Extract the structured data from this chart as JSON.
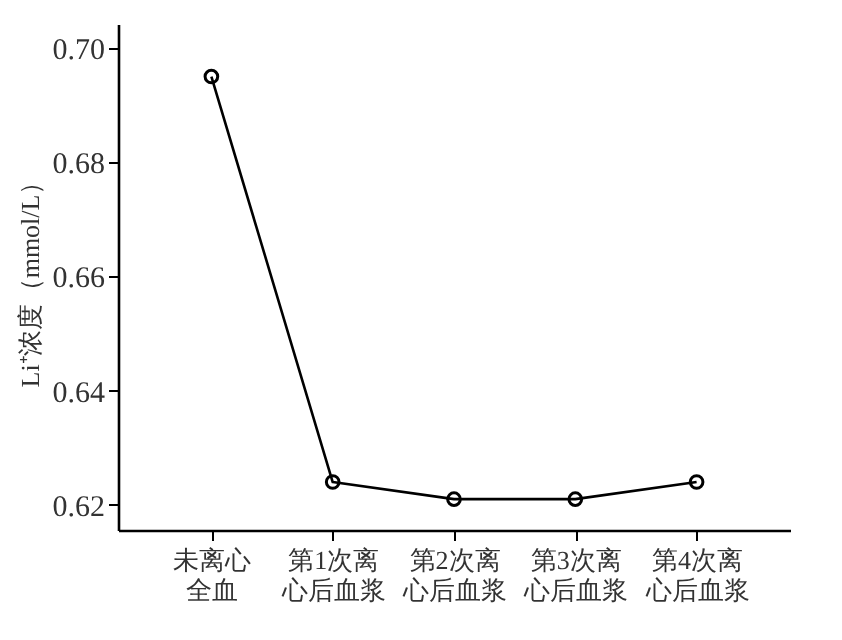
{
  "chart_data": {
    "type": "line",
    "ylabel": "Li⁺浓度（mmol/L）",
    "categories": [
      "未离心全血",
      "第1次离心后血浆",
      "第2次离心后血浆",
      "第3次离心后血浆",
      "第4次离心后血浆"
    ],
    "series": [
      {
        "color": "#000000",
        "values": [
          0.695,
          0.624,
          0.621,
          0.621,
          0.624
        ]
      }
    ],
    "ylim": [
      0.6156,
      0.7042
    ],
    "yticks": [
      0.62,
      0.64,
      0.66,
      0.68,
      {
        "value": 0.7,
        "label": "0.70"
      }
    ],
    "grid": false,
    "legend": false,
    "marker": "circle",
    "line_style": "solid"
  }
}
